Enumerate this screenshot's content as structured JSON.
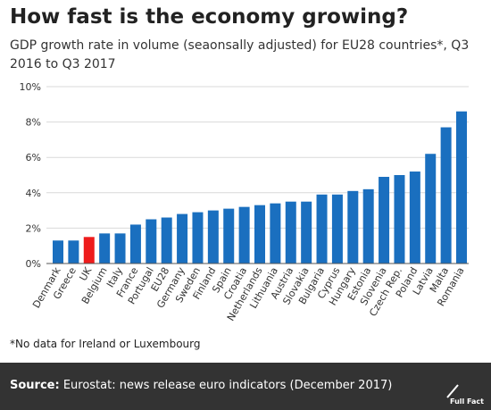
{
  "header": {
    "title": "How fast is the economy growing?",
    "subtitle": "GDP growth rate in volume (seaonsally adjusted) for EU28 countries*, Q3 2016 to Q3 2017"
  },
  "colors": {
    "bar": "#1a6fbf",
    "highlight": "#ee1c1c",
    "grid": "#d9d9d9",
    "axis": "#555555",
    "footer_bg": "#333333"
  },
  "chart_data": {
    "type": "bar",
    "title": "",
    "xlabel": "",
    "ylabel": "",
    "categories": [
      "Denmark",
      "Greece",
      "UK",
      "Belgium",
      "Italy",
      "France",
      "Portugal",
      "EU28",
      "Germany",
      "Sweden",
      "Finland",
      "Spain",
      "Croatia",
      "Netherlands",
      "Lithuania",
      "Austria",
      "Slovakia",
      "Bulgaria",
      "Cyprus",
      "Hungary",
      "Estonia",
      "Slovenia",
      "Czech Rep.",
      "Poland",
      "Latvia",
      "Malta",
      "Romania"
    ],
    "values": [
      1.3,
      1.3,
      1.5,
      1.7,
      1.7,
      2.2,
      2.5,
      2.6,
      2.8,
      2.9,
      3.0,
      3.1,
      3.2,
      3.3,
      3.4,
      3.5,
      3.5,
      3.9,
      3.9,
      4.1,
      4.2,
      4.9,
      5.0,
      5.2,
      6.2,
      7.7,
      8.6
    ],
    "highlight": "UK",
    "ylim": [
      0,
      10
    ],
    "yticks": [
      "0%",
      "2%",
      "4%",
      "6%",
      "8%",
      "10%"
    ],
    "ytick_values": [
      0,
      2,
      4,
      6,
      8,
      10
    ],
    "grid": true,
    "legend": "none"
  },
  "footnote": "*No data for Ireland or Luxembourg",
  "footer": {
    "source_label": "Source:",
    "source_text": " Eurostat: news release euro indicators (December 2017)",
    "brand": "Full Fact"
  }
}
